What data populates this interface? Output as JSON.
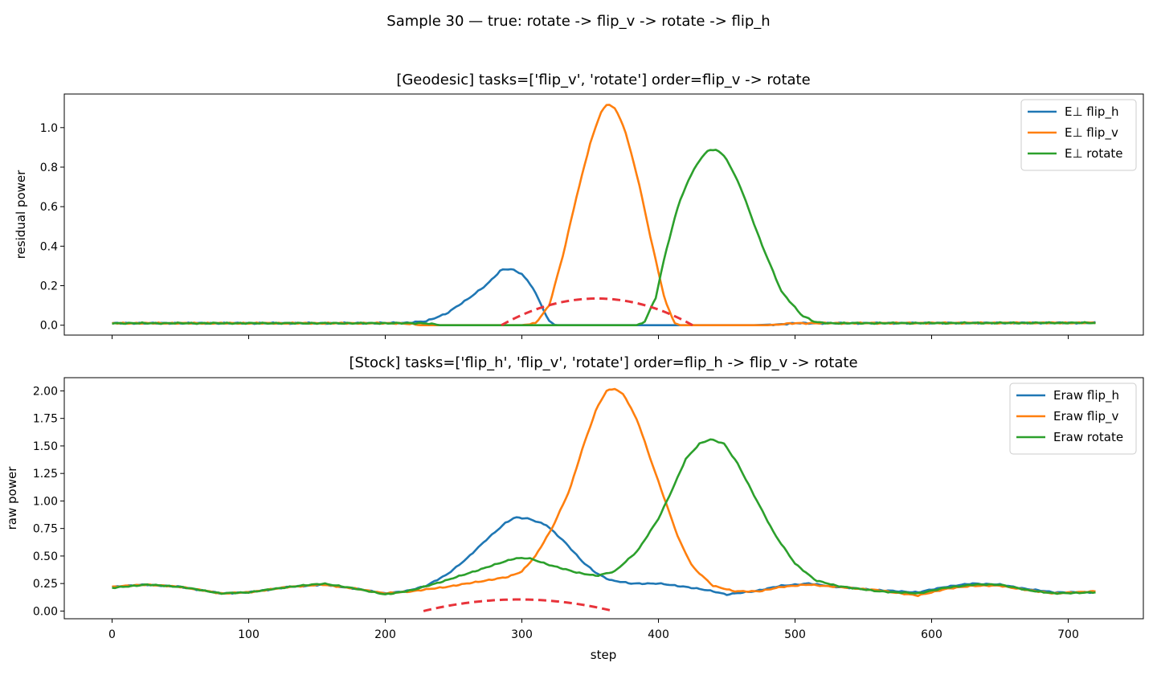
{
  "figure": {
    "suptitle": "Sample 30 — true: rotate -> flip_v -> rotate -> flip_h"
  },
  "chart_data": [
    {
      "type": "line",
      "title": "[Geodesic] tasks=['flip_v', 'rotate'] order=flip_v -> rotate",
      "xlabel": "",
      "ylabel": "residual power",
      "xlim": [
        -35,
        755
      ],
      "ylim": [
        -0.05,
        1.17
      ],
      "x_ticks": [
        0,
        100,
        200,
        300,
        400,
        500,
        600,
        700
      ],
      "x_tick_labels_visible": false,
      "y_ticks": [
        0.0,
        0.2,
        0.4,
        0.6,
        0.8,
        1.0
      ],
      "y_tick_labels": [
        "0.0",
        "0.2",
        "0.4",
        "0.6",
        "0.8",
        "1.0"
      ],
      "grid": false,
      "legend": "top-right",
      "series": [
        {
          "name": "E⊥ flip_h",
          "color": "#1f77b4",
          "baseline": 0.01,
          "noise": 0.004,
          "points": [
            [
              0,
              0.01
            ],
            [
              180,
              0.01
            ],
            [
              215,
              0.012
            ],
            [
              230,
              0.02
            ],
            [
              245,
              0.06
            ],
            [
              260,
              0.13
            ],
            [
              275,
              0.21
            ],
            [
              285,
              0.28
            ],
            [
              292,
              0.285
            ],
            [
              300,
              0.26
            ],
            [
              308,
              0.19
            ],
            [
              315,
              0.09
            ],
            [
              320,
              0.02
            ],
            [
              325,
              0.0
            ],
            [
              380,
              0.0
            ],
            [
              405,
              0.0
            ],
            [
              420,
              0.0
            ],
            [
              470,
              0.0
            ],
            [
              490,
              0.005
            ],
            [
              500,
              0.01
            ],
            [
              720,
              0.012
            ]
          ]
        },
        {
          "name": "E⊥ flip_v",
          "color": "#ff7f0e",
          "baseline": 0.01,
          "noise": 0.004,
          "points": [
            [
              0,
              0.01
            ],
            [
              210,
              0.01
            ],
            [
              220,
              0.005
            ],
            [
              225,
              0.0
            ],
            [
              300,
              0.0
            ],
            [
              310,
              0.01
            ],
            [
              320,
              0.1
            ],
            [
              330,
              0.35
            ],
            [
              340,
              0.65
            ],
            [
              350,
              0.92
            ],
            [
              358,
              1.08
            ],
            [
              363,
              1.12
            ],
            [
              368,
              1.1
            ],
            [
              375,
              1.0
            ],
            [
              385,
              0.74
            ],
            [
              395,
              0.42
            ],
            [
              405,
              0.12
            ],
            [
              412,
              0.01
            ],
            [
              415,
              0.0
            ],
            [
              480,
              0.0
            ],
            [
              500,
              0.01
            ],
            [
              720,
              0.012
            ]
          ]
        },
        {
          "name": "E⊥ rotate",
          "color": "#2ca02c",
          "baseline": 0.01,
          "noise": 0.004,
          "points": [
            [
              0,
              0.01
            ],
            [
              230,
              0.01
            ],
            [
              240,
              0.0
            ],
            [
              385,
              0.0
            ],
            [
              390,
              0.02
            ],
            [
              398,
              0.14
            ],
            [
              405,
              0.36
            ],
            [
              415,
              0.62
            ],
            [
              425,
              0.78
            ],
            [
              435,
              0.88
            ],
            [
              443,
              0.89
            ],
            [
              450,
              0.84
            ],
            [
              460,
              0.7
            ],
            [
              475,
              0.42
            ],
            [
              490,
              0.17
            ],
            [
              505,
              0.05
            ],
            [
              515,
              0.015
            ],
            [
              525,
              0.01
            ],
            [
              720,
              0.012
            ]
          ]
        }
      ],
      "dashed_curve": {
        "color": "#e8333a",
        "x_range": [
          285,
          425
        ],
        "peak": 0.135
      }
    },
    {
      "type": "line",
      "title": "[Stock] tasks=['flip_h', 'flip_v', 'rotate'] order=flip_h -> flip_v -> rotate",
      "xlabel": "step",
      "ylabel": "raw power",
      "xlim": [
        -35,
        755
      ],
      "ylim": [
        -0.07,
        2.12
      ],
      "x_ticks": [
        0,
        100,
        200,
        300,
        400,
        500,
        600,
        700
      ],
      "x_tick_labels": [
        "0",
        "100",
        "200",
        "300",
        "400",
        "500",
        "600",
        "700"
      ],
      "y_ticks": [
        0.0,
        0.25,
        0.5,
        0.75,
        1.0,
        1.25,
        1.5,
        1.75,
        2.0
      ],
      "y_tick_labels": [
        "0.00",
        "0.25",
        "0.50",
        "0.75",
        "1.00",
        "1.25",
        "1.50",
        "1.75",
        "2.00"
      ],
      "grid": false,
      "legend": "top-right",
      "series": [
        {
          "name": "Eraw flip_h",
          "color": "#1f77b4",
          "baseline": 0.0,
          "noise": 0.006,
          "points": [
            [
              0,
              0.22
            ],
            [
              25,
              0.24
            ],
            [
              50,
              0.22
            ],
            [
              80,
              0.16
            ],
            [
              100,
              0.17
            ],
            [
              130,
              0.22
            ],
            [
              155,
              0.24
            ],
            [
              180,
              0.2
            ],
            [
              200,
              0.16
            ],
            [
              215,
              0.18
            ],
            [
              230,
              0.23
            ],
            [
              245,
              0.33
            ],
            [
              260,
              0.48
            ],
            [
              275,
              0.66
            ],
            [
              288,
              0.8
            ],
            [
              295,
              0.85
            ],
            [
              305,
              0.84
            ],
            [
              318,
              0.78
            ],
            [
              332,
              0.62
            ],
            [
              345,
              0.44
            ],
            [
              355,
              0.34
            ],
            [
              365,
              0.28
            ],
            [
              380,
              0.25
            ],
            [
              400,
              0.25
            ],
            [
              420,
              0.22
            ],
            [
              440,
              0.18
            ],
            [
              450,
              0.15
            ],
            [
              470,
              0.18
            ],
            [
              490,
              0.23
            ],
            [
              510,
              0.25
            ],
            [
              530,
              0.22
            ],
            [
              560,
              0.19
            ],
            [
              590,
              0.17
            ],
            [
              610,
              0.22
            ],
            [
              630,
              0.25
            ],
            [
              650,
              0.24
            ],
            [
              670,
              0.2
            ],
            [
              690,
              0.17
            ],
            [
              720,
              0.17
            ]
          ]
        },
        {
          "name": "Eraw flip_v",
          "color": "#ff7f0e",
          "baseline": 0.0,
          "noise": 0.006,
          "points": [
            [
              0,
              0.22
            ],
            [
              25,
              0.24
            ],
            [
              50,
              0.22
            ],
            [
              80,
              0.16
            ],
            [
              100,
              0.17
            ],
            [
              130,
              0.22
            ],
            [
              155,
              0.24
            ],
            [
              180,
              0.2
            ],
            [
              200,
              0.16
            ],
            [
              220,
              0.18
            ],
            [
              245,
              0.22
            ],
            [
              270,
              0.27
            ],
            [
              290,
              0.31
            ],
            [
              300,
              0.36
            ],
            [
              310,
              0.5
            ],
            [
              322,
              0.75
            ],
            [
              335,
              1.1
            ],
            [
              345,
              1.5
            ],
            [
              355,
              1.85
            ],
            [
              362,
              2.0
            ],
            [
              368,
              2.02
            ],
            [
              375,
              1.96
            ],
            [
              385,
              1.72
            ],
            [
              395,
              1.35
            ],
            [
              405,
              1.0
            ],
            [
              415,
              0.65
            ],
            [
              425,
              0.4
            ],
            [
              440,
              0.23
            ],
            [
              455,
              0.18
            ],
            [
              475,
              0.18
            ],
            [
              490,
              0.22
            ],
            [
              510,
              0.24
            ],
            [
              530,
              0.22
            ],
            [
              560,
              0.19
            ],
            [
              590,
              0.14
            ],
            [
              610,
              0.2
            ],
            [
              630,
              0.23
            ],
            [
              650,
              0.23
            ],
            [
              670,
              0.19
            ],
            [
              690,
              0.16
            ],
            [
              720,
              0.18
            ]
          ]
        },
        {
          "name": "Eraw rotate",
          "color": "#2ca02c",
          "baseline": 0.0,
          "noise": 0.006,
          "points": [
            [
              0,
              0.21
            ],
            [
              25,
              0.24
            ],
            [
              50,
              0.22
            ],
            [
              80,
              0.16
            ],
            [
              100,
              0.17
            ],
            [
              130,
              0.22
            ],
            [
              155,
              0.25
            ],
            [
              180,
              0.2
            ],
            [
              200,
              0.15
            ],
            [
              220,
              0.19
            ],
            [
              245,
              0.28
            ],
            [
              265,
              0.36
            ],
            [
              285,
              0.44
            ],
            [
              295,
              0.48
            ],
            [
              305,
              0.48
            ],
            [
              320,
              0.42
            ],
            [
              340,
              0.35
            ],
            [
              355,
              0.32
            ],
            [
              368,
              0.36
            ],
            [
              385,
              0.55
            ],
            [
              400,
              0.84
            ],
            [
              410,
              1.1
            ],
            [
              420,
              1.38
            ],
            [
              430,
              1.52
            ],
            [
              438,
              1.56
            ],
            [
              448,
              1.52
            ],
            [
              458,
              1.34
            ],
            [
              470,
              1.05
            ],
            [
              485,
              0.7
            ],
            [
              500,
              0.43
            ],
            [
              515,
              0.28
            ],
            [
              530,
              0.23
            ],
            [
              560,
              0.18
            ],
            [
              590,
              0.16
            ],
            [
              610,
              0.21
            ],
            [
              630,
              0.24
            ],
            [
              650,
              0.24
            ],
            [
              670,
              0.19
            ],
            [
              690,
              0.16
            ],
            [
              720,
              0.17
            ]
          ]
        }
      ],
      "dashed_curve": {
        "color": "#e8333a",
        "x_range": [
          228,
          367
        ],
        "peak": 0.105
      }
    }
  ]
}
